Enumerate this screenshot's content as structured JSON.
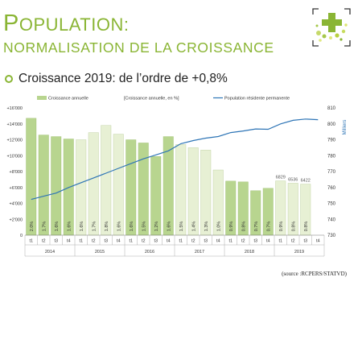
{
  "header": {
    "title_first": "P",
    "title_rest": "OPULATION:",
    "subtitle": "NORMALISATION DE LA CROISSANCE"
  },
  "bullet": {
    "text": "Croissance 2019: de l’ordre de +0,8%"
  },
  "source": "(source :RCPERS/STATVD)",
  "colors": {
    "accent": "#8ab534",
    "bar_dark": "#b8d58f",
    "bar_light": "#e7f0d4",
    "line": "#2e75b6"
  },
  "chart_data": {
    "type": "bar",
    "legend": {
      "bars": "Croissance annuelle",
      "pct_label": "[Croissance annuelle, en %]",
      "line": "Population résidente permanente"
    },
    "ylabel_right": "Milliers",
    "y_left_ticks": [
      "0",
      "+2'000",
      "+4'000",
      "+6'000",
      "+8'000",
      "+10'000",
      "+12'000",
      "+14'000",
      "+16'000"
    ],
    "y_left_range": [
      0,
      16000
    ],
    "y_right_ticks": [
      "730",
      "740",
      "750",
      "760",
      "770",
      "780",
      "790",
      "800",
      "810"
    ],
    "y_right_range": [
      730,
      810
    ],
    "categories": [
      "t1",
      "t2",
      "t3",
      "t4",
      "t1",
      "t2",
      "t3",
      "t4",
      "t1",
      "t2",
      "t3",
      "t4",
      "t1",
      "t2",
      "t3",
      "t4",
      "t1",
      "t2",
      "t3",
      "t4",
      "t1",
      "t2",
      "t3",
      "t4"
    ],
    "years": [
      "2014",
      "2015",
      "2016",
      "2017",
      "2018",
      "2019"
    ],
    "series": [
      {
        "name": "Croissance annuelle",
        "values": [
          14700,
          12600,
          12400,
          12100,
          12000,
          12900,
          13800,
          12700,
          12000,
          11600,
          9900,
          12400,
          11400,
          11000,
          10700,
          8200,
          6800,
          6700,
          5600,
          5900,
          6829,
          6536,
          6422,
          null
        ],
        "shade": [
          "d",
          "d",
          "d",
          "d",
          "l",
          "l",
          "l",
          "l",
          "d",
          "d",
          "d",
          "d",
          "l",
          "l",
          "l",
          "l",
          "d",
          "d",
          "d",
          "d",
          "l",
          "l",
          "l",
          "l"
        ]
      },
      {
        "name": "Population résidente permanente",
        "values": [
          752.5,
          754.5,
          756.5,
          760,
          763,
          766,
          769,
          772,
          775,
          778,
          780.5,
          783,
          787.5,
          789.5,
          791,
          792,
          794.5,
          795.5,
          796.8,
          796.6,
          800,
          802.2,
          803,
          802.6
        ]
      }
    ],
    "pct_labels": [
      "2.0%",
      "1.7%",
      "1.6%",
      "1.6%",
      "1.6%",
      "1.7%",
      "1.8%",
      "1.6%",
      "1.6%",
      "1.5%",
      "1.2%",
      "1.6%",
      "1.5%",
      "1.4%",
      "1.3%",
      "1.0%",
      "0.9%",
      "0.8%",
      "0.7%",
      "0.7%",
      "0.9%",
      "0.8%",
      "0.8%",
      ""
    ],
    "value_labels": [
      "",
      "",
      "",
      "",
      "",
      "",
      "",
      "",
      "",
      "",
      "",
      "",
      "",
      "",
      "",
      "",
      "",
      "",
      "",
      "",
      "6829",
      "6536",
      "6422",
      ""
    ]
  }
}
